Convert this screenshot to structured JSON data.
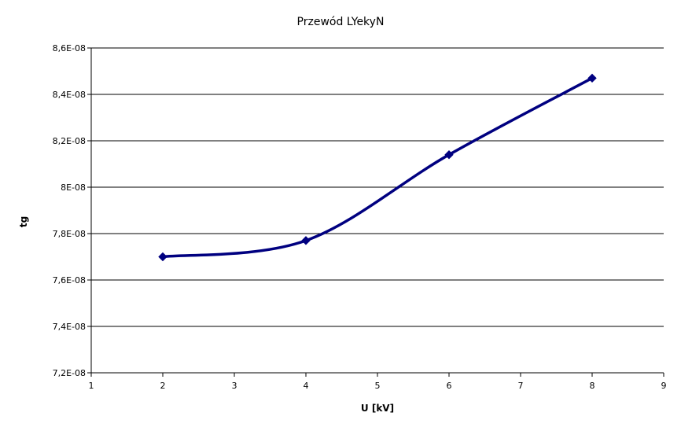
{
  "chart_data": {
    "type": "line",
    "title": "Przewód LYekyN",
    "xlabel": "U  [kV]",
    "ylabel": "tg",
    "xlim": [
      1,
      9
    ],
    "ylim": [
      7.2e-08,
      8.6e-08
    ],
    "x_ticks": [
      "1",
      "2",
      "3",
      "4",
      "5",
      "6",
      "7",
      "8",
      "9"
    ],
    "y_ticks": [
      "7,2E-08",
      "7,4E-08",
      "7,6E-08",
      "7,8E-08",
      "8E-08",
      "8,2E-08",
      "8,4E-08",
      "8,6E-08"
    ],
    "grid": "horizontal",
    "series": [
      {
        "x": [
          2,
          4,
          6,
          8
        ],
        "y": [
          7.7e-08,
          7.77e-08,
          8.14e-08,
          8.47e-08
        ],
        "color": "#000080"
      }
    ]
  }
}
